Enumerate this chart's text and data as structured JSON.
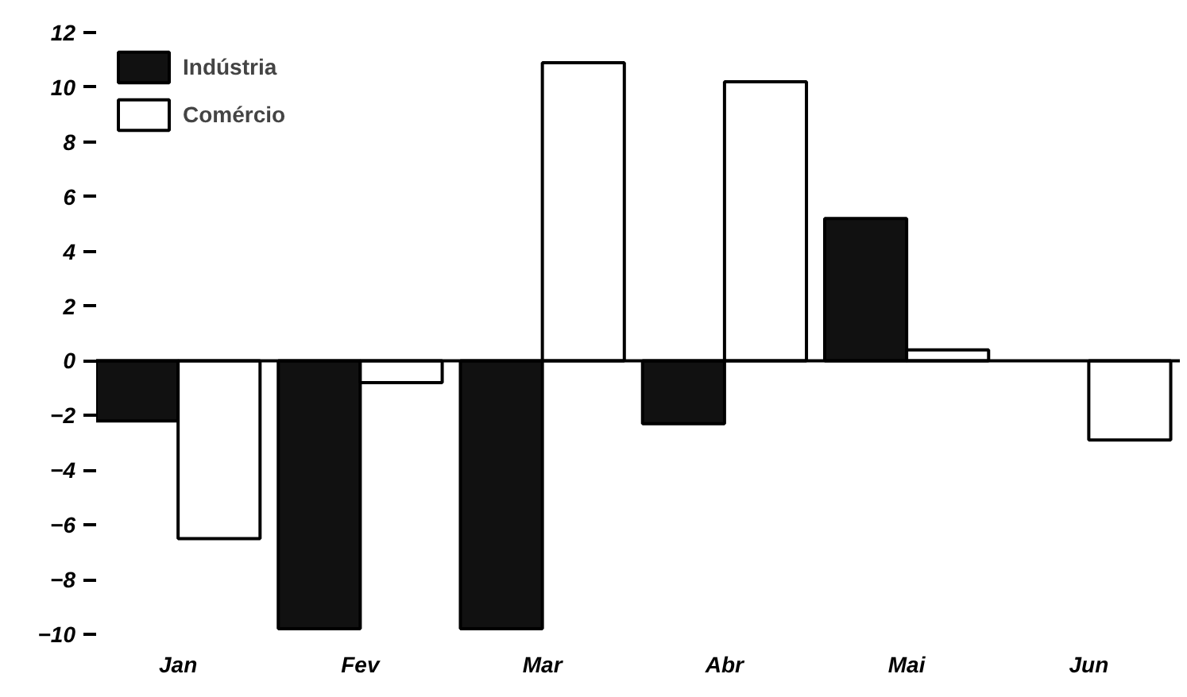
{
  "chart_data": {
    "type": "bar",
    "categories": [
      "Jan",
      "Fev",
      "Mar",
      "Abr",
      "Mai",
      "Jun"
    ],
    "series": [
      {
        "name": "Indústria",
        "color": "#111111",
        "values": [
          -2.2,
          -9.8,
          -9.8,
          -2.3,
          5.2,
          null
        ]
      },
      {
        "name": "Comércio",
        "color": "#ffffff",
        "values": [
          -6.5,
          -0.8,
          10.9,
          10.2,
          0.4,
          -2.9
        ]
      }
    ],
    "ylim": [
      -10,
      12
    ],
    "ref_lines": [
      {
        "axis": "y",
        "value": 0,
        "color": "#000000"
      }
    ],
    "yticks": [
      12,
      10,
      8,
      6,
      4,
      2,
      0,
      -2,
      -4,
      -6,
      -8,
      -10
    ],
    "grid": false,
    "legend": "top left"
  }
}
